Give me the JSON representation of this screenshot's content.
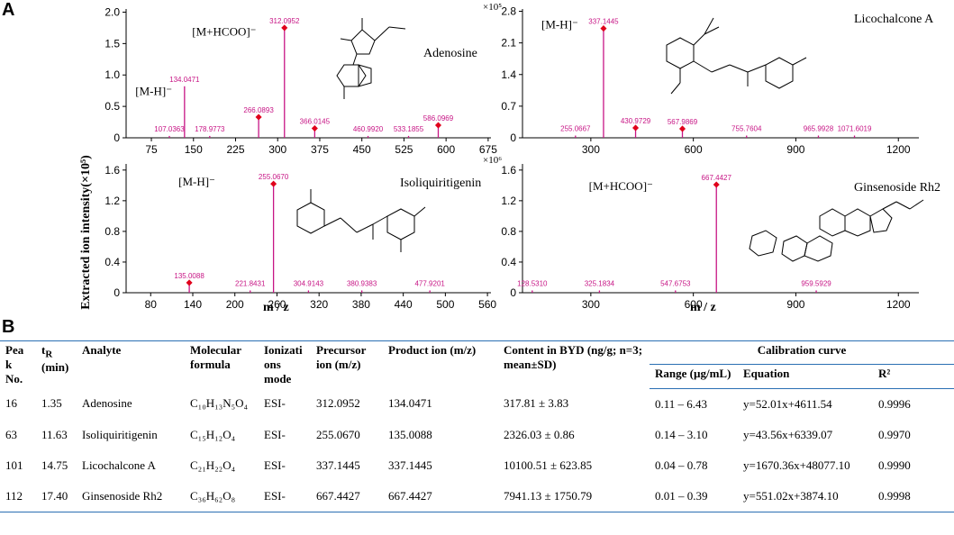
{
  "panel_labels": {
    "a": "A",
    "b": "B"
  },
  "y_axis_label": "Extracted ion intensity(×10⁵)",
  "x_axis_label": "m / z",
  "colors": {
    "peak": "#c71585",
    "marker": "#e0001b",
    "table_rule": "#2a6fb3"
  },
  "chart_data": [
    {
      "type": "bar",
      "id": "adenosine",
      "compound": "Adenosine",
      "multiplier": "",
      "xlim": [
        30,
        680
      ],
      "ylim": [
        0,
        2.05
      ],
      "xticks": [
        75,
        150,
        225,
        300,
        375,
        450,
        525,
        600,
        675
      ],
      "yticks": [
        "0",
        "0.5",
        "1.0",
        "1.5",
        "2.0"
      ],
      "ytick_values": [
        0,
        0.5,
        1.0,
        1.5,
        2.0
      ],
      "adduct_labels": [
        {
          "text": "[M+HCOO]⁻",
          "x": 262,
          "y": 1.63
        },
        {
          "text": "[M-H]⁻",
          "x": 112,
          "y": 0.68
        }
      ],
      "peaks": [
        {
          "x": 107.0363,
          "y": 0.03,
          "label": "107.0363",
          "marker": false
        },
        {
          "x": 134.0471,
          "y": 0.82,
          "label": "134.0471",
          "marker": false
        },
        {
          "x": 178.9773,
          "y": 0.03,
          "label": "178.9773",
          "marker": false
        },
        {
          "x": 266.0893,
          "y": 0.33,
          "label": "266.0893",
          "marker": true
        },
        {
          "x": 312.0952,
          "y": 1.75,
          "label": "312.0952",
          "marker": true
        },
        {
          "x": 366.0145,
          "y": 0.15,
          "label": "366.0145",
          "marker": true
        },
        {
          "x": 460.992,
          "y": 0.03,
          "label": "460.9920",
          "marker": false
        },
        {
          "x": 533.1855,
          "y": 0.03,
          "label": "533.1855",
          "marker": false
        },
        {
          "x": 586.0969,
          "y": 0.2,
          "label": "586.0969",
          "marker": true
        }
      ]
    },
    {
      "type": "bar",
      "id": "licochalcone",
      "compound": "Licochalcone A",
      "multiplier": "×10⁵",
      "xlim": [
        100,
        1260
      ],
      "ylim": [
        0,
        2.85
      ],
      "xticks": [
        300,
        600,
        900,
        1200
      ],
      "yticks": [
        "0",
        "0.7",
        "1.4",
        "2.1",
        "2.8"
      ],
      "ytick_values": [
        0,
        0.7,
        1.4,
        2.1,
        2.8
      ],
      "adduct_labels": [
        {
          "text": "[M-H]⁻",
          "x": 263,
          "y": 2.42
        }
      ],
      "peaks": [
        {
          "x": 255.0667,
          "y": 0.05,
          "label": "255.0667",
          "marker": false
        },
        {
          "x": 337.1445,
          "y": 2.42,
          "label": "337.1445",
          "marker": true
        },
        {
          "x": 430.9729,
          "y": 0.22,
          "label": "430.9729",
          "marker": true
        },
        {
          "x": 567.9869,
          "y": 0.2,
          "label": "567.9869",
          "marker": true
        },
        {
          "x": 755.7604,
          "y": 0.05,
          "label": "755.7604",
          "marker": false
        },
        {
          "x": 965.9928,
          "y": 0.05,
          "label": "965.9928",
          "marker": false
        },
        {
          "x": 1071.6019,
          "y": 0.05,
          "label": "1071.6019",
          "marker": false
        }
      ]
    },
    {
      "type": "bar",
      "id": "isoliquiritigenin",
      "compound": "Isoliquiritigenin",
      "multiplier": "",
      "xlim": [
        45,
        565
      ],
      "ylim": [
        0,
        1.68
      ],
      "xticks": [
        80,
        140,
        200,
        260,
        320,
        380,
        440,
        500,
        560
      ],
      "yticks": [
        "0",
        "0.4",
        "0.8",
        "1.2",
        "1.6"
      ],
      "ytick_values": [
        0,
        0.4,
        0.8,
        1.2,
        1.6
      ],
      "adduct_labels": [
        {
          "text": "[M-H]⁻",
          "x": 172,
          "y": 1.4
        }
      ],
      "peaks": [
        {
          "x": 135.0088,
          "y": 0.13,
          "label": "135.0088",
          "marker": true
        },
        {
          "x": 221.8431,
          "y": 0.03,
          "label": "221.8431",
          "marker": false
        },
        {
          "x": 255.067,
          "y": 1.42,
          "label": "255.0670",
          "marker": true
        },
        {
          "x": 304.9143,
          "y": 0.03,
          "label": "304.9143",
          "marker": false
        },
        {
          "x": 380.9383,
          "y": 0.03,
          "label": "380.9383",
          "marker": false
        },
        {
          "x": 477.9201,
          "y": 0.03,
          "label": "477.9201",
          "marker": false
        }
      ]
    },
    {
      "type": "bar",
      "id": "ginsenoside",
      "compound": "Ginsenoside Rh2",
      "multiplier": "×10⁶",
      "xlim": [
        100,
        1260
      ],
      "ylim": [
        0,
        1.68
      ],
      "xticks": [
        300,
        600,
        900,
        1200
      ],
      "yticks": [
        "0",
        "0.4",
        "0.8",
        "1.2",
        "1.6"
      ],
      "ytick_values": [
        0,
        0.4,
        0.8,
        1.2,
        1.6
      ],
      "adduct_labels": [
        {
          "text": "[M+HCOO]⁻",
          "x": 482,
          "y": 1.34
        }
      ],
      "peaks": [
        {
          "x": 128.531,
          "y": 0.03,
          "label": "128.5310",
          "marker": false
        },
        {
          "x": 325.1834,
          "y": 0.03,
          "label": "325.1834",
          "marker": false
        },
        {
          "x": 547.6753,
          "y": 0.03,
          "label": "547.6753",
          "marker": false
        },
        {
          "x": 667.4427,
          "y": 1.41,
          "label": "667.4427",
          "marker": true
        },
        {
          "x": 959.5929,
          "y": 0.03,
          "label": "959.5929",
          "marker": false
        }
      ]
    }
  ],
  "table": {
    "headers": {
      "peak": "Pea k No.",
      "tr": "t",
      "tr_sub": "R",
      "tr_unit": "(min)",
      "analyte": "Analyte",
      "formula": "Molecular formula",
      "ion": "Ionizati ons mode",
      "precursor": "Precursor ion (m/z)",
      "product": "Product ion (m/z)",
      "content": "Content in BYD (ng/g; n=3; mean±SD)",
      "calibration": "Calibration curve",
      "range": "Range (µg/mL)",
      "equation": "Equation",
      "r2": "R²"
    },
    "rows": [
      {
        "peak": "16",
        "tr": "1.35",
        "analyte": "Adenosine",
        "formula": "C₁₀H₁₃N₅O₄",
        "ion": "ESI-",
        "precursor": "312.0952",
        "product": "134.0471",
        "content": "317.81 ± 3.83",
        "range": "0.11 – 6.43",
        "equation": "y=52.01x+4611.54",
        "r2": "0.9996"
      },
      {
        "peak": "63",
        "tr": "11.63",
        "analyte": "Isoliquiritigenin",
        "formula": "C₁₅H₁₂O₄",
        "ion": "ESI-",
        "precursor": "255.0670",
        "product": "135.0088",
        "content": "2326.03 ± 0.86",
        "range": "0.14 – 3.10",
        "equation": "y=43.56x+6339.07",
        "r2": "0.9970"
      },
      {
        "peak": "101",
        "tr": "14.75",
        "analyte": "Licochalcone A",
        "formula": "C₂₁H₂₂O₄",
        "ion": "ESI-",
        "precursor": "337.1445",
        "product": "337.1445",
        "content": "10100.51 ± 623.85",
        "range": "0.04 – 0.78",
        "equation": "y=1670.36x+48077.10",
        "r2": "0.9990"
      },
      {
        "peak": "112",
        "tr": "17.40",
        "analyte": "Ginsenoside Rh2",
        "formula": "C₃₆H₆₂O₈",
        "ion": "ESI-",
        "precursor": "667.4427",
        "product": "667.4427",
        "content": "7941.13 ± 1750.79",
        "range": "0.01 – 0.39",
        "equation": "y=551.02x+3874.10",
        "r2": "0.9998"
      }
    ]
  }
}
